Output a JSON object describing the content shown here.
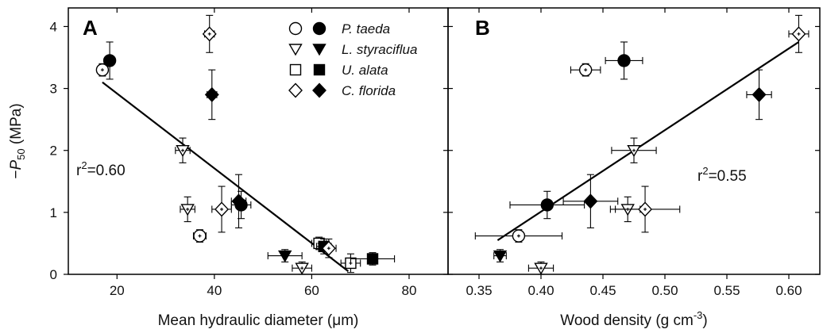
{
  "chart_data": {
    "type": "scatter",
    "y_axis": {
      "label_prefix": "−",
      "label_var": "P",
      "label_sub": "50",
      "label_suffix": " (MPa)",
      "ticks": [
        "0",
        "1",
        "2",
        "3",
        "4"
      ],
      "ylim": [
        0,
        4.3
      ]
    },
    "legend": {
      "placement": "top-right of panel A",
      "entries": [
        {
          "species": "P. taeda",
          "marker": "circle"
        },
        {
          "species": "L. styraciflua",
          "marker": "triangle-down"
        },
        {
          "species": "U. alata",
          "marker": "square"
        },
        {
          "species": "C. florida",
          "marker": "diamond"
        }
      ]
    },
    "panels": [
      {
        "letter": "A",
        "xlabel": "Mean hydraulic diameter (μm)",
        "xticks": [
          "20",
          "40",
          "60",
          "80"
        ],
        "xlim": [
          10,
          88
        ],
        "r2_text_main": "r",
        "r2_text_sup": "2",
        "r2_text_value": "=0.60",
        "fit_line": {
          "x1": 17,
          "y1": 3.1,
          "x2": 67.5,
          "y2": 0.05
        },
        "points": [
          {
            "sp": "circle",
            "fill": "open",
            "x": 17,
            "y": 3.3,
            "xerr": 1,
            "yerr": 0.1
          },
          {
            "sp": "circle",
            "fill": "filled",
            "x": 18.5,
            "y": 3.45,
            "xerr": 1,
            "yerr": 0.3
          },
          {
            "sp": "circle",
            "fill": "open",
            "x": 37,
            "y": 0.62,
            "xerr": 1.3,
            "yerr": 0.1
          },
          {
            "sp": "circle",
            "fill": "filled",
            "x": 45.5,
            "y": 1.12,
            "xerr": 2,
            "yerr": 0.22
          },
          {
            "sp": "triangle-down",
            "fill": "open",
            "x": 33.5,
            "y": 2.0,
            "xerr": 1.5,
            "yerr": 0.2
          },
          {
            "sp": "triangle-down",
            "fill": "open",
            "x": 34.5,
            "y": 1.05,
            "xerr": 1.5,
            "yerr": 0.2
          },
          {
            "sp": "triangle-down",
            "fill": "filled",
            "x": 54.5,
            "y": 0.3,
            "xerr": 3.5,
            "yerr": 0.1
          },
          {
            "sp": "triangle-down",
            "fill": "open",
            "x": 58,
            "y": 0.1,
            "xerr": 2,
            "yerr": 0.1
          },
          {
            "sp": "square",
            "fill": "open",
            "x": 61.5,
            "y": 0.5,
            "xerr": 1.5,
            "yerr": 0.1
          },
          {
            "sp": "square",
            "fill": "filled",
            "x": 62.5,
            "y": 0.45,
            "xerr": 1.5,
            "yerr": 0.12
          },
          {
            "sp": "square",
            "fill": "open",
            "x": 68,
            "y": 0.18,
            "xerr": 2,
            "yerr": 0.15
          },
          {
            "sp": "square",
            "fill": "filled",
            "x": 72.5,
            "y": 0.25,
            "xerr": 4.5,
            "yerr": 0.1
          },
          {
            "sp": "diamond",
            "fill": "open",
            "x": 39,
            "y": 3.88,
            "xerr": 1,
            "yerr": 0.3
          },
          {
            "sp": "diamond",
            "fill": "filled",
            "x": 39.5,
            "y": 2.9,
            "xerr": 1,
            "yerr": 0.4
          },
          {
            "sp": "diamond",
            "fill": "open",
            "x": 41.5,
            "y": 1.05,
            "xerr": 2,
            "yerr": 0.37
          },
          {
            "sp": "diamond",
            "fill": "filled",
            "x": 45,
            "y": 1.18,
            "xerr": 1.5,
            "yerr": 0.43
          },
          {
            "sp": "diamond",
            "fill": "open",
            "x": 63.5,
            "y": 0.42,
            "xerr": 1.5,
            "yerr": 0.15
          }
        ]
      },
      {
        "letter": "B",
        "xlabel_main": "Wood density (g cm",
        "xlabel_sup": "-3",
        "xlabel_end": ")",
        "xticks": [
          "0.35",
          "0.40",
          "0.45",
          "0.50",
          "0.55",
          "0.60"
        ],
        "xlim": [
          0.325,
          0.625
        ],
        "r2_text_main": "r",
        "r2_text_sup": "2",
        "r2_text_value": "=0.55",
        "fit_line": {
          "x1": 0.365,
          "y1": 0.55,
          "x2": 0.608,
          "y2": 3.75
        },
        "points": [
          {
            "sp": "circle",
            "fill": "open",
            "x": 0.436,
            "y": 3.3,
            "xerr": 0.012,
            "yerr": 0.1
          },
          {
            "sp": "circle",
            "fill": "filled",
            "x": 0.467,
            "y": 3.45,
            "xerr": 0.015,
            "yerr": 0.3
          },
          {
            "sp": "circle",
            "fill": "open",
            "x": 0.382,
            "y": 0.62,
            "xerr": 0.035,
            "yerr": 0.1
          },
          {
            "sp": "circle",
            "fill": "filled",
            "x": 0.405,
            "y": 1.12,
            "xerr": 0.03,
            "yerr": 0.22
          },
          {
            "sp": "triangle-down",
            "fill": "open",
            "x": 0.475,
            "y": 2.0,
            "xerr": 0.018,
            "yerr": 0.2
          },
          {
            "sp": "triangle-down",
            "fill": "open",
            "x": 0.47,
            "y": 1.05,
            "xerr": 0.01,
            "yerr": 0.2
          },
          {
            "sp": "triangle-down",
            "fill": "filled",
            "x": 0.367,
            "y": 0.3,
            "xerr": 0.005,
            "yerr": 0.1
          },
          {
            "sp": "triangle-down",
            "fill": "open",
            "x": 0.4,
            "y": 0.1,
            "xerr": 0.01,
            "yerr": 0.1
          },
          {
            "sp": "diamond",
            "fill": "open",
            "x": 0.608,
            "y": 3.88,
            "xerr": 0.008,
            "yerr": 0.3
          },
          {
            "sp": "diamond",
            "fill": "filled",
            "x": 0.576,
            "y": 2.9,
            "xerr": 0.01,
            "yerr": 0.4
          },
          {
            "sp": "diamond",
            "fill": "open",
            "x": 0.484,
            "y": 1.05,
            "xerr": 0.028,
            "yerr": 0.37
          },
          {
            "sp": "diamond",
            "fill": "filled",
            "x": 0.44,
            "y": 1.18,
            "xerr": 0.022,
            "yerr": 0.43
          }
        ]
      }
    ]
  }
}
